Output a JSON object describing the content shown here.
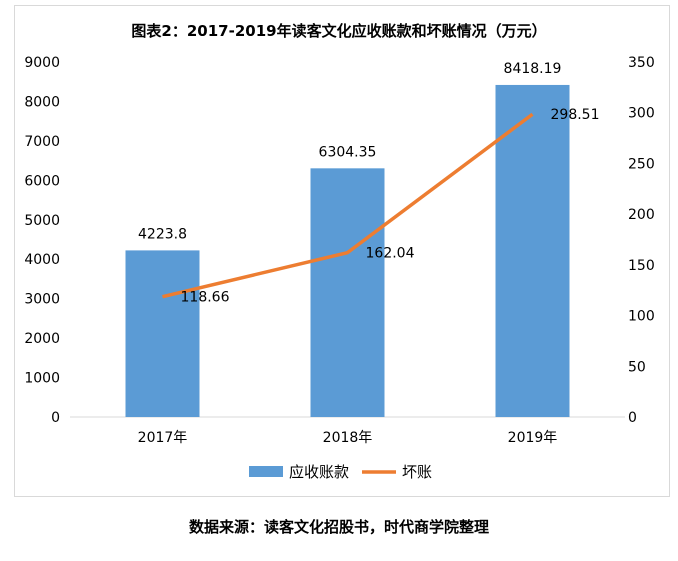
{
  "chart_data": {
    "type": "bar+line",
    "title": "图表2：2017-2019年读客文化应收账款和坏账情况（万元）",
    "categories": [
      "2017年",
      "2018年",
      "2019年"
    ],
    "series": [
      {
        "name": "应收账款",
        "type": "bar",
        "axis": "left",
        "values": [
          4223.8,
          6304.35,
          8418.19
        ],
        "labels": [
          "4223.8",
          "6304.35",
          "8418.19"
        ],
        "color": "#5b9bd5"
      },
      {
        "name": "坏账",
        "type": "line",
        "axis": "right",
        "values": [
          118.66,
          162.04,
          298.51
        ],
        "labels": [
          "118.66",
          "162.04",
          "298.51"
        ],
        "color": "#ed7d31"
      }
    ],
    "y_left": {
      "min": 0,
      "max": 9000,
      "ticks": [
        "0",
        "1000",
        "2000",
        "3000",
        "4000",
        "5000",
        "6000",
        "7000",
        "8000",
        "9000"
      ]
    },
    "y_right": {
      "min": 0,
      "max": 350,
      "ticks": [
        "0",
        "50",
        "100",
        "150",
        "200",
        "250",
        "300",
        "350"
      ]
    },
    "grid": false,
    "legend": "bottom"
  },
  "footer": "数据来源：读客文化招股书，时代商学院整理"
}
